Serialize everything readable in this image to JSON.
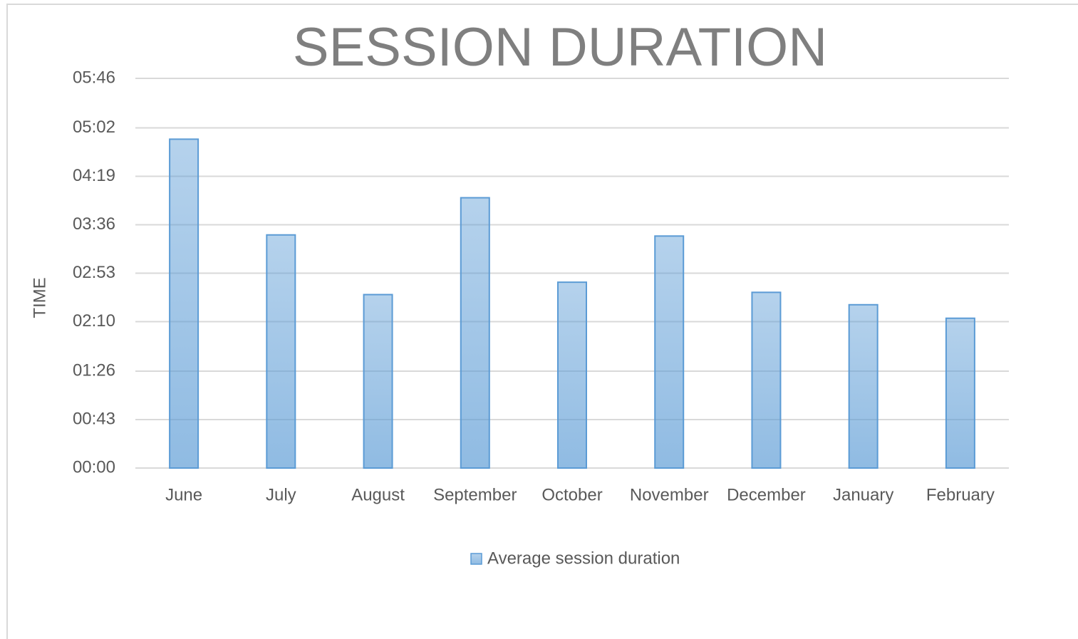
{
  "chart_data": {
    "type": "bar",
    "title": "SESSION DURATION",
    "y_label": "TIME",
    "categories": [
      "June",
      "July",
      "August",
      "September",
      "October",
      "November",
      "December",
      "January",
      "February"
    ],
    "series": [
      {
        "name": "Average session duration",
        "color": "#5b9bd5",
        "values": [
          292,
          207,
          154,
          240,
          165,
          206,
          156,
          145,
          133
        ]
      }
    ],
    "ylim": [
      0,
      346
    ],
    "yticks": [
      {
        "value": 0,
        "label": "00:00"
      },
      {
        "value": 43,
        "label": "00:43"
      },
      {
        "value": 86,
        "label": "01:26"
      },
      {
        "value": 130,
        "label": "02:10"
      },
      {
        "value": 173,
        "label": "02:53"
      },
      {
        "value": 216,
        "label": "03:36"
      },
      {
        "value": 259,
        "label": "04:19"
      },
      {
        "value": 302,
        "label": "05:02"
      },
      {
        "value": 346,
        "label": "05:46"
      }
    ],
    "grid": true,
    "legend": "bottom"
  }
}
